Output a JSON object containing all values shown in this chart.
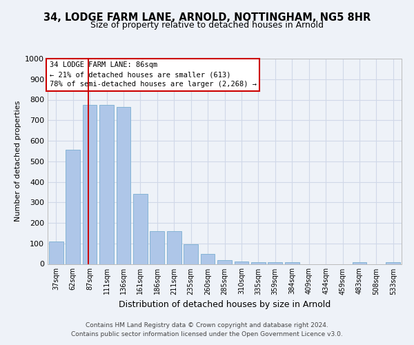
{
  "title1": "34, LODGE FARM LANE, ARNOLD, NOTTINGHAM, NG5 8HR",
  "title2": "Size of property relative to detached houses in Arnold",
  "xlabel": "Distribution of detached houses by size in Arnold",
  "ylabel": "Number of detached properties",
  "categories": [
    "37sqm",
    "62sqm",
    "87sqm",
    "111sqm",
    "136sqm",
    "161sqm",
    "186sqm",
    "211sqm",
    "235sqm",
    "260sqm",
    "285sqm",
    "310sqm",
    "335sqm",
    "359sqm",
    "384sqm",
    "409sqm",
    "434sqm",
    "459sqm",
    "483sqm",
    "508sqm",
    "533sqm"
  ],
  "values": [
    110,
    555,
    775,
    775,
    765,
    340,
    160,
    160,
    97,
    50,
    18,
    13,
    10,
    10,
    10,
    0,
    0,
    0,
    8,
    0,
    8
  ],
  "bar_color": "#aec6e8",
  "bar_edge_color": "#7aaed0",
  "grid_color": "#d0d8e8",
  "annotation_text_line1": "34 LODGE FARM LANE: 86sqm",
  "annotation_text_line2": "← 21% of detached houses are smaller (613)",
  "annotation_text_line3": "78% of semi-detached houses are larger (2,268) →",
  "annotation_box_color": "#ffffff",
  "annotation_box_edge": "#cc0000",
  "annotation_line_color": "#cc0000",
  "footer_line1": "Contains HM Land Registry data © Crown copyright and database right 2024.",
  "footer_line2": "Contains public sector information licensed under the Open Government Licence v3.0.",
  "ylim": [
    0,
    1000
  ],
  "yticks": [
    0,
    100,
    200,
    300,
    400,
    500,
    600,
    700,
    800,
    900,
    1000
  ],
  "background_color": "#eef2f8",
  "plot_bg_color": "#eef2f8"
}
